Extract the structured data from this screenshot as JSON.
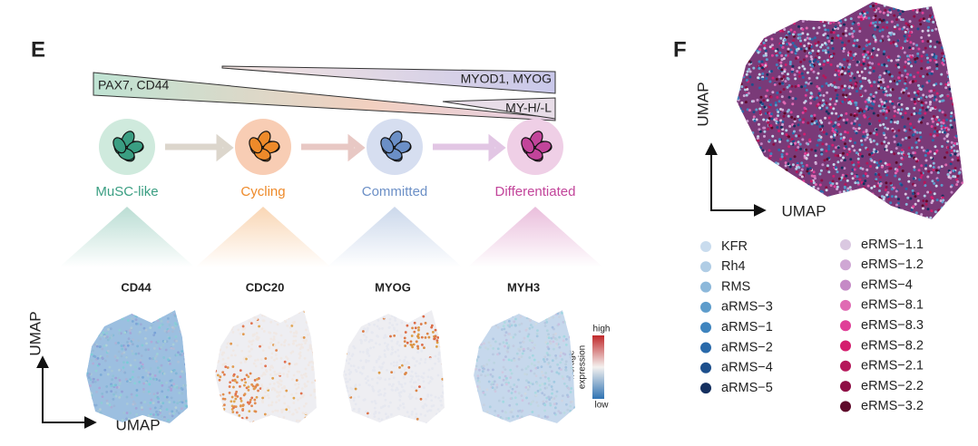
{
  "panel_e": {
    "label": "E",
    "wedges": [
      "PAX7, CD44",
      "MYOD1, MYOG",
      "MY-H/-L"
    ],
    "stages": [
      {
        "name": "MuSC-like",
        "color": "#3a9e82"
      },
      {
        "name": "Cycling",
        "color": "#ee8a2a"
      },
      {
        "name": "Committed",
        "color": "#6b8fc6"
      },
      {
        "name": "Differentiated",
        "color": "#c2449a"
      }
    ],
    "genes": [
      "CD44",
      "CDC20",
      "MYOG",
      "MYH3"
    ],
    "axis_x": "UMAP",
    "axis_y": "UMAP",
    "colorbar": {
      "title": [
        "Average",
        "expression"
      ],
      "high": "high",
      "low": "low"
    }
  },
  "panel_f": {
    "label": "F",
    "axis_x": "UMAP",
    "axis_y": "UMAP",
    "legend": [
      {
        "name": "KFR",
        "color": "#c9dcee"
      },
      {
        "name": "Rh4",
        "color": "#b0cde5"
      },
      {
        "name": "RMS",
        "color": "#8cb8da"
      },
      {
        "name": "aRMS−3",
        "color": "#5d9ccb"
      },
      {
        "name": "aRMS−1",
        "color": "#3f84be"
      },
      {
        "name": "aRMS−2",
        "color": "#2a6aaa"
      },
      {
        "name": "aRMS−4",
        "color": "#1d4f8c"
      },
      {
        "name": "aRMS−5",
        "color": "#15305f"
      },
      {
        "name": "eRMS−1.1",
        "color": "#dac8e1"
      },
      {
        "name": "eRMS−1.2",
        "color": "#cfa7d4"
      },
      {
        "name": "eRMS−4",
        "color": "#c58ac6"
      },
      {
        "name": "eRMS−8.1",
        "color": "#e06bb3"
      },
      {
        "name": "eRMS−8.3",
        "color": "#e03f98"
      },
      {
        "name": "eRMS−8.2",
        "color": "#d41e6e"
      },
      {
        "name": "eRMS−2.1",
        "color": "#b5175a"
      },
      {
        "name": "eRMS−2.2",
        "color": "#8e0e45"
      },
      {
        "name": "eRMS−3.2",
        "color": "#5e0a2a"
      }
    ]
  }
}
